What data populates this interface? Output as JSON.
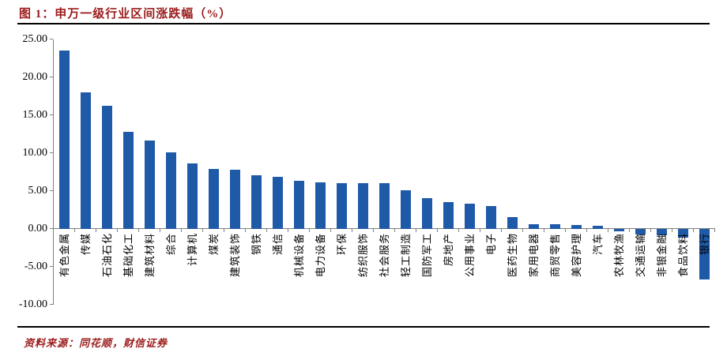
{
  "page": {
    "title": "图 1：申万一级行业区间涨跌幅（%）",
    "source": "资料来源：同花顺，财信证券"
  },
  "colors": {
    "bar": "#1E5AA8",
    "title_text": "#9B1B1B",
    "source_text": "#9B1B1B",
    "axis": "#808080",
    "rule": "#000000",
    "tick_label": "#000000"
  },
  "chart_data": {
    "type": "bar",
    "title": "申万一级行业区间涨跌幅（%）",
    "categories": [
      "有色金属",
      "传媒",
      "石油石化",
      "基础化工",
      "建筑材料",
      "综合",
      "计算机",
      "煤炭",
      "建筑装饰",
      "钢铁",
      "通信",
      "机械设备",
      "电力设备",
      "环保",
      "纺织服饰",
      "社会服务",
      "轻工制造",
      "国防军工",
      "房地产",
      "公用事业",
      "电子",
      "医药生物",
      "家用电器",
      "商贸零售",
      "美容护理",
      "汽车",
      "农林牧渔",
      "交通运输",
      "非银金融",
      "食品饮料",
      "银行"
    ],
    "values": [
      23.5,
      18.0,
      16.3,
      12.8,
      11.7,
      10.1,
      8.6,
      7.9,
      7.8,
      7.1,
      6.9,
      6.4,
      6.1,
      6.0,
      6.0,
      6.0,
      5.1,
      4.1,
      3.5,
      3.3,
      3.0,
      1.6,
      0.6,
      0.6,
      0.5,
      0.4,
      -0.3,
      -0.7,
      -0.8,
      -1.1,
      -6.7
    ],
    "xlabel": "",
    "ylabel": "",
    "ylim": [
      -10,
      25
    ],
    "yticks": [
      25,
      20,
      15,
      10,
      5,
      0,
      -5,
      -10
    ],
    "ytick_decimals": 2,
    "grid": false,
    "legend": false
  }
}
